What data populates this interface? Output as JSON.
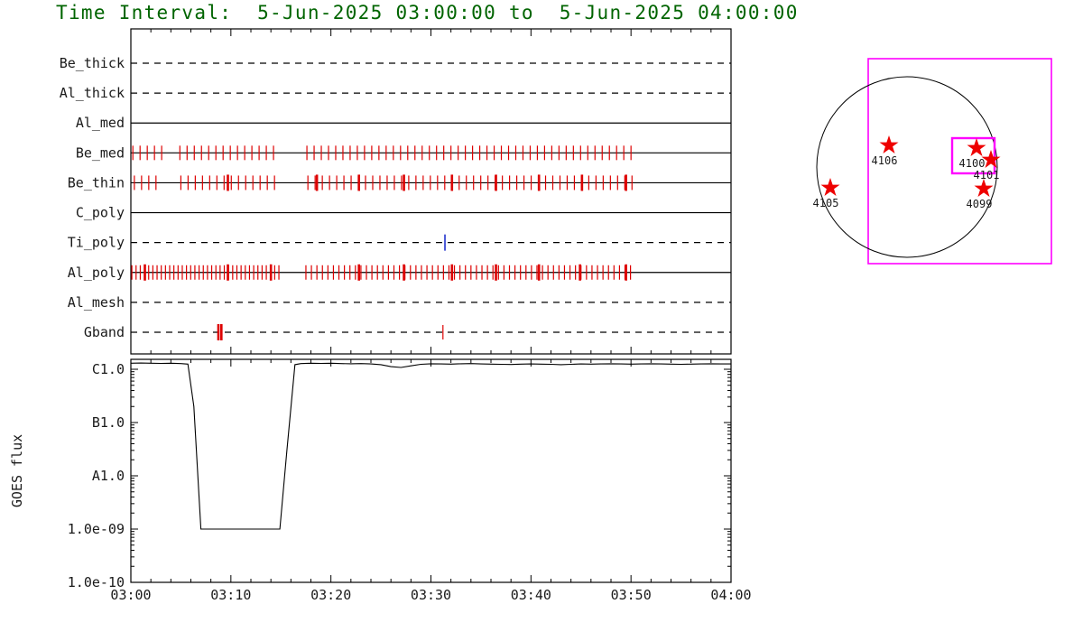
{
  "title": "Time Interval:  5-Jun-2025 03:00:00 to  5-Jun-2025 04:00:00",
  "colors": {
    "title_text": "#006400",
    "axis": "#000000",
    "label_text": "#222222",
    "exposure_tick": "#dd0000",
    "special_tick": "#2233cc",
    "fov_box": "#ff00ff",
    "star": "#ee0000",
    "flux_line": "#000000",
    "background": "#ffffff"
  },
  "chart_data": [
    {
      "id": "xrt_filter_timeline",
      "type": "timeline",
      "x_axis": {
        "range_minutes": [
          0,
          60
        ],
        "start_label": "03:00",
        "end_label": "04:00",
        "major_tick_minutes": 10,
        "minor_tick_minutes": 2
      },
      "rows": [
        {
          "label": "Be_thick",
          "line_style": "dashed",
          "tick_segments": [],
          "thick_ticks": [],
          "special_ticks": []
        },
        {
          "label": "Al_thick",
          "line_style": "dashed",
          "tick_segments": [],
          "thick_ticks": [],
          "special_ticks": []
        },
        {
          "label": "Al_med",
          "line_style": "solid",
          "tick_segments": [],
          "thick_ticks": [],
          "special_ticks": []
        },
        {
          "label": "Be_med",
          "line_style": "solid",
          "tick_segments": [
            {
              "from": 0.2,
              "to": 3.1,
              "step": 0.72
            },
            {
              "from": 4.9,
              "to": 14.9,
              "step": 0.72
            },
            {
              "from": 17.6,
              "to": 50.5,
              "step": 0.72
            }
          ],
          "thick_ticks": [],
          "special_ticks": []
        },
        {
          "label": "Be_thin",
          "line_style": "solid",
          "tick_segments": [
            {
              "from": 0.35,
              "to": 3.2,
              "step": 0.72
            },
            {
              "from": 5.0,
              "to": 14.8,
              "step": 0.72
            },
            {
              "from": 17.7,
              "to": 50.3,
              "step": 0.72
            }
          ],
          "thick_ticks": [
            9.7,
            18.6,
            22.8,
            27.3,
            32.1,
            36.5,
            40.8,
            45.1,
            49.5
          ],
          "special_ticks": []
        },
        {
          "label": "C_poly",
          "line_style": "solid",
          "tick_segments": [],
          "thick_ticks": [],
          "special_ticks": []
        },
        {
          "label": "Ti_poly",
          "line_style": "dashed",
          "tick_segments": [],
          "thick_ticks": [],
          "special_ticks": [
            31.4
          ]
        },
        {
          "label": "Al_poly",
          "line_style": "solid",
          "tick_segments": [
            {
              "from": 0.1,
              "to": 14.9,
              "step": 0.42
            },
            {
              "from": 17.5,
              "to": 50.2,
              "step": 0.55
            }
          ],
          "thick_ticks": [
            1.4,
            9.7,
            14.0,
            22.8,
            27.3,
            32.1,
            36.5,
            40.8,
            44.9,
            49.5
          ],
          "special_ticks": []
        },
        {
          "label": "Al_mesh",
          "line_style": "dashed",
          "tick_segments": [],
          "thick_ticks": [],
          "special_ticks": []
        },
        {
          "label": "Gband",
          "line_style": "dashed",
          "tick_segments": [
            {
              "from": 31.2,
              "to": 31.2,
              "step": 1
            }
          ],
          "thick_ticks": [
            8.75,
            9.05
          ],
          "special_ticks": []
        }
      ]
    },
    {
      "id": "goes_flux",
      "type": "line",
      "ylabel": "GOES flux",
      "ylim": [
        1e-10,
        1.53e-06
      ],
      "y_ticks": [
        {
          "label": "C1.0",
          "value": 1e-06
        },
        {
          "label": "B1.0",
          "value": 1e-07
        },
        {
          "label": "A1.0",
          "value": 1e-08
        },
        {
          "label": "1.0e-09",
          "value": 1e-09
        },
        {
          "label": "1.0e-10",
          "value": 1e-10
        }
      ],
      "x_ticks": [
        {
          "minutes": 0,
          "label": "03:00"
        },
        {
          "minutes": 10,
          "label": "03:10"
        },
        {
          "minutes": 20,
          "label": "03:20"
        },
        {
          "minutes": 30,
          "label": "03:30"
        },
        {
          "minutes": 40,
          "label": "03:40"
        },
        {
          "minutes": 50,
          "label": "03:50"
        },
        {
          "minutes": 60,
          "label": "04:00"
        }
      ],
      "minor_tick_minutes": 2,
      "series": [
        {
          "name": "GOES flux",
          "points": [
            [
              0,
              1.3e-06
            ],
            [
              1,
              1.31e-06
            ],
            [
              2,
              1.3e-06
            ],
            [
              3,
              1.29e-06
            ],
            [
              4,
              1.3e-06
            ],
            [
              5,
              1.28e-06
            ],
            [
              5.7,
              1.25e-06
            ],
            [
              6.3,
              2e-07
            ],
            [
              7.0,
              1e-09
            ],
            [
              8,
              1e-09
            ],
            [
              10,
              1e-09
            ],
            [
              12,
              1e-09
            ],
            [
              14,
              1e-09
            ],
            [
              14.9,
              1e-09
            ],
            [
              15.6,
              3e-08
            ],
            [
              16.4,
              1.22e-06
            ],
            [
              17,
              1.28e-06
            ],
            [
              18,
              1.3e-06
            ],
            [
              19,
              1.29e-06
            ],
            [
              20,
              1.3e-06
            ],
            [
              21,
              1.28e-06
            ],
            [
              22,
              1.27e-06
            ],
            [
              23,
              1.28e-06
            ],
            [
              24,
              1.26e-06
            ],
            [
              25,
              1.22e-06
            ],
            [
              26,
              1.12e-06
            ],
            [
              27,
              1.08e-06
            ],
            [
              28,
              1.16e-06
            ],
            [
              29,
              1.24e-06
            ],
            [
              30,
              1.27e-06
            ],
            [
              31,
              1.26e-06
            ],
            [
              32,
              1.25e-06
            ],
            [
              33,
              1.27e-06
            ],
            [
              34,
              1.28e-06
            ],
            [
              35,
              1.26e-06
            ],
            [
              36,
              1.25e-06
            ],
            [
              37,
              1.24e-06
            ],
            [
              38,
              1.23e-06
            ],
            [
              39,
              1.25e-06
            ],
            [
              40,
              1.26e-06
            ],
            [
              41,
              1.25e-06
            ],
            [
              42,
              1.24e-06
            ],
            [
              43,
              1.22e-06
            ],
            [
              44,
              1.24e-06
            ],
            [
              45,
              1.26e-06
            ],
            [
              46,
              1.25e-06
            ],
            [
              47,
              1.26e-06
            ],
            [
              48,
              1.27e-06
            ],
            [
              49,
              1.26e-06
            ],
            [
              50,
              1.25e-06
            ],
            [
              51,
              1.26e-06
            ],
            [
              52,
              1.27e-06
            ],
            [
              53,
              1.26e-06
            ],
            [
              54,
              1.25e-06
            ],
            [
              55,
              1.24e-06
            ],
            [
              56,
              1.25e-06
            ],
            [
              57,
              1.26e-06
            ],
            [
              58,
              1.27e-06
            ],
            [
              59,
              1.26e-06
            ],
            [
              60,
              1.26e-06
            ]
          ]
        }
      ]
    },
    {
      "id": "solar_disk_map",
      "type": "solar_map",
      "active_regions": [
        {
          "label": "4106",
          "nx": -0.2,
          "ny": -0.24
        },
        {
          "label": "4100",
          "nx": 0.77,
          "ny": -0.21
        },
        {
          "label": "4101",
          "nx": 0.93,
          "ny": -0.08
        },
        {
          "label": "4105",
          "nx": -0.85,
          "ny": 0.23
        },
        {
          "label": "4099",
          "nx": 0.85,
          "ny": 0.24
        }
      ],
      "fov_rect": {
        "x1": -0.43,
        "y1": -1.2,
        "x2": 1.6,
        "y2": 1.07
      },
      "target_rect": {
        "x1": 0.5,
        "y1": -0.32,
        "x2": 0.97,
        "y2": 0.07
      }
    }
  ]
}
